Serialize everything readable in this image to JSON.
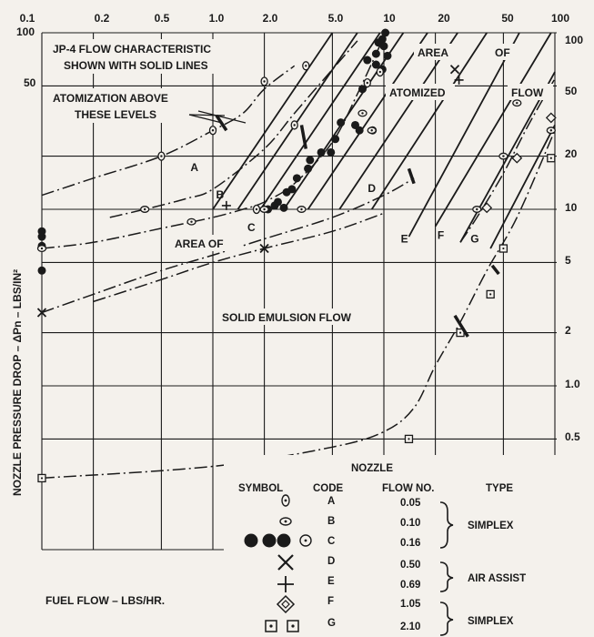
{
  "chart_data": {
    "type": "line",
    "x_scale": "log",
    "y_scale": "log",
    "xlim": [
      0.1,
      100
    ],
    "ylim": [
      0.2,
      100
    ],
    "grid": true,
    "xlabel": "FUEL FLOW – LBS/HR.",
    "ylabel": "NOZZLE PRESSURE DROP – ΔPn – LBS/IN²",
    "x_ticks": [
      "0.1",
      "0.2",
      "0.5",
      "1.0",
      "2.0",
      "5.0",
      "10",
      "20",
      "50",
      "100"
    ],
    "y_ticks_left": [
      "100",
      "50"
    ],
    "y_ticks_right": [
      "100",
      "50",
      "20",
      "10",
      "5",
      "2",
      "1.0",
      "0.5"
    ],
    "annotations": {
      "title_line1": "JP-4 FLOW CHARACTERISTIC",
      "title_line2": "SHOWN WITH SOLID LINES",
      "atomization_line1": "ATOMIZATION ABOVE",
      "atomization_line2": "THESE LEVELS",
      "area_atomized_1": "AREA",
      "area_atomized_2": "OF",
      "area_atomized_3": "ATOMIZED",
      "area_atomized_4": "FLOW",
      "area_of": "AREA OF",
      "solid_emulsion": "SOLID EMULSION FLOW"
    },
    "jp4_lines": [
      {
        "from": [
          1.0,
          10
        ],
        "to": [
          5.0,
          100
        ]
      },
      {
        "from": [
          1.4,
          10
        ],
        "to": [
          7.0,
          100
        ]
      },
      {
        "from": [
          1.9,
          10
        ],
        "to": [
          9.5,
          100
        ]
      },
      {
        "from": [
          2.6,
          10
        ],
        "to": [
          13.0,
          100
        ]
      },
      {
        "from": [
          3.6,
          10
        ],
        "to": [
          18.0,
          100
        ]
      },
      {
        "from": [
          5.5,
          10
        ],
        "to": [
          27.0,
          100
        ]
      },
      {
        "from": [
          8.5,
          10
        ],
        "to": [
          40.0,
          100
        ]
      },
      {
        "from": [
          14.0,
          7
        ],
        "to": [
          62.0,
          100
        ]
      },
      {
        "from": [
          20.0,
          8
        ],
        "to": [
          95.0,
          100
        ]
      },
      {
        "from": [
          28.0,
          6.5
        ],
        "to": [
          100.0,
          60
        ]
      },
      {
        "from": [
          42.0,
          6.0
        ],
        "to": [
          100.0,
          30
        ]
      }
    ],
    "series": [
      {
        "name": "A",
        "x": [
          0.1,
          0.2,
          0.5,
          1.0,
          1.5,
          2.0,
          3.0
        ],
        "y": [
          12,
          15,
          20,
          28,
          35,
          48,
          65
        ]
      },
      {
        "name": "B",
        "x": [
          0.25,
          0.4,
          0.7,
          1.0,
          2.0,
          3.0,
          5.0,
          7.0
        ],
        "y": [
          9,
          10,
          11.5,
          13,
          22,
          35,
          62,
          90
        ]
      },
      {
        "name": "C",
        "x": [
          0.1,
          0.2,
          0.5,
          1.0,
          1.5,
          2.0,
          3.0,
          5.0,
          7.0,
          9.5
        ],
        "y": [
          6,
          6.5,
          7.8,
          9,
          10,
          11,
          14,
          24,
          45,
          85
        ]
      },
      {
        "name": "D",
        "x": [
          0.1,
          0.2,
          0.5,
          1.0,
          2.0,
          5.0,
          10.0,
          15.0
        ],
        "y": [
          2.6,
          3.3,
          4.5,
          5.5,
          6.8,
          9,
          12,
          15
        ]
      },
      {
        "name": "E",
        "x": [
          0.2,
          0.5,
          1.0,
          2.0,
          5.0,
          10.0
        ],
        "y": [
          3.0,
          4.0,
          5.0,
          6.0,
          7.5,
          9.5
        ]
      },
      {
        "name": "F",
        "x": [
          28,
          35,
          50,
          70,
          100
        ],
        "y": [
          6.5,
          9,
          16,
          30,
          55
        ]
      },
      {
        "name": "G",
        "x": [
          0.1,
          1.0,
          5.0,
          10.0,
          15.0,
          20.0,
          28.0,
          40.0,
          60.0,
          100.0
        ],
        "y": [
          0.3,
          0.35,
          0.45,
          0.55,
          0.75,
          1.3,
          2.3,
          4.5,
          9,
          28
        ]
      }
    ],
    "markers": {
      "filled": [
        [
          10.2,
          100
        ],
        [
          9.8,
          92
        ],
        [
          9.3,
          88
        ],
        [
          10.0,
          84
        ],
        [
          9.0,
          76
        ],
        [
          10.5,
          74
        ],
        [
          8.0,
          70
        ],
        [
          9.0,
          66
        ],
        [
          9.8,
          62
        ],
        [
          7.5,
          48
        ],
        [
          6.8,
          30
        ],
        [
          5.6,
          31
        ],
        [
          7.2,
          28
        ],
        [
          8.6,
          28
        ],
        [
          5.2,
          25
        ],
        [
          4.3,
          21
        ],
        [
          4.9,
          21
        ],
        [
          3.7,
          19
        ],
        [
          3.6,
          17
        ],
        [
          3.1,
          15
        ],
        [
          2.9,
          13
        ],
        [
          2.7,
          12.5
        ],
        [
          2.4,
          11
        ],
        [
          2.3,
          10.5
        ],
        [
          2.6,
          10.2
        ],
        [
          2.1,
          10
        ],
        [
          0.1,
          7.5
        ],
        [
          0.1,
          7.0
        ],
        [
          0.1,
          6.2
        ],
        [
          0.1,
          4.5
        ]
      ],
      "dotted_circle": [
        [
          1.0,
          28
        ],
        [
          2.0,
          53
        ],
        [
          3.5,
          65
        ],
        [
          3.0,
          30
        ],
        [
          1.8,
          10
        ],
        [
          8.0,
          52
        ],
        [
          9.5,
          60
        ],
        [
          0.5,
          20
        ]
      ],
      "open_circle": [
        [
          0.1,
          6.0
        ],
        [
          0.4,
          10
        ],
        [
          0.75,
          8.5
        ],
        [
          2.0,
          10
        ],
        [
          3.3,
          10
        ],
        [
          7.5,
          35
        ],
        [
          8.5,
          28
        ],
        [
          60,
          40
        ],
        [
          95,
          28
        ],
        [
          50,
          20
        ],
        [
          35,
          10
        ]
      ],
      "cross_x": [
        [
          0.1,
          2.6
        ],
        [
          2.0,
          6.0
        ],
        [
          26.0,
          62
        ]
      ],
      "plus": [
        [
          1.2,
          10.5
        ],
        [
          27.5,
          54
        ]
      ],
      "diamond": [
        [
          40,
          10.2
        ],
        [
          60,
          19.5
        ],
        [
          95,
          33
        ]
      ],
      "square": [
        [
          0.1,
          0.3
        ],
        [
          14,
          0.5
        ],
        [
          28,
          2.0
        ],
        [
          42,
          3.3
        ],
        [
          50,
          6.0
        ],
        [
          95,
          19.5
        ]
      ],
      "bars": [
        [
          3.3,
          30,
          3.5,
          22
        ],
        [
          14,
          17,
          15,
          14
        ],
        [
          26,
          2.5,
          31,
          1.9
        ],
        [
          1.05,
          34,
          1.2,
          28
        ],
        [
          43,
          4.8,
          47,
          4.3
        ]
      ]
    },
    "letter_labels": [
      {
        "letter": "A",
        "x": 0.78,
        "y": 16.5
      },
      {
        "letter": "B",
        "x": 1.1,
        "y": 11.5
      },
      {
        "letter": "C",
        "x": 1.68,
        "y": 7.5
      },
      {
        "letter": "D",
        "x": 8.5,
        "y": 12.5
      },
      {
        "letter": "E",
        "x": 13.2,
        "y": 6.5
      },
      {
        "letter": "F",
        "x": 21.5,
        "y": 6.8
      },
      {
        "letter": "G",
        "x": 34.0,
        "y": 6.5
      }
    ],
    "legend": {
      "nozzle_header": "NOZZLE",
      "col_symbol": "SYMBOL",
      "col_code": "CODE",
      "col_flow": "FLOW NO.",
      "col_type": "TYPE",
      "rows": [
        {
          "symbol": "dotted-circle-vertical",
          "code": "A",
          "flow": "0.05"
        },
        {
          "symbol": "dotted-circle-horizontal",
          "code": "B",
          "flow": "0.10"
        },
        {
          "symbol": "filled-circles",
          "code": "C",
          "flow": "0.16"
        },
        {
          "symbol": "cross-x",
          "code": "D",
          "flow": "0.50"
        },
        {
          "symbol": "plus",
          "code": "E",
          "flow": "0.69"
        },
        {
          "symbol": "diamond",
          "code": "F",
          "flow": "1.05"
        },
        {
          "symbol": "dotted-square",
          "code": "G",
          "flow": "2.10"
        }
      ],
      "type_groups": [
        "SIMPLEX",
        "AIR ASSIST",
        "SIMPLEX"
      ]
    }
  }
}
